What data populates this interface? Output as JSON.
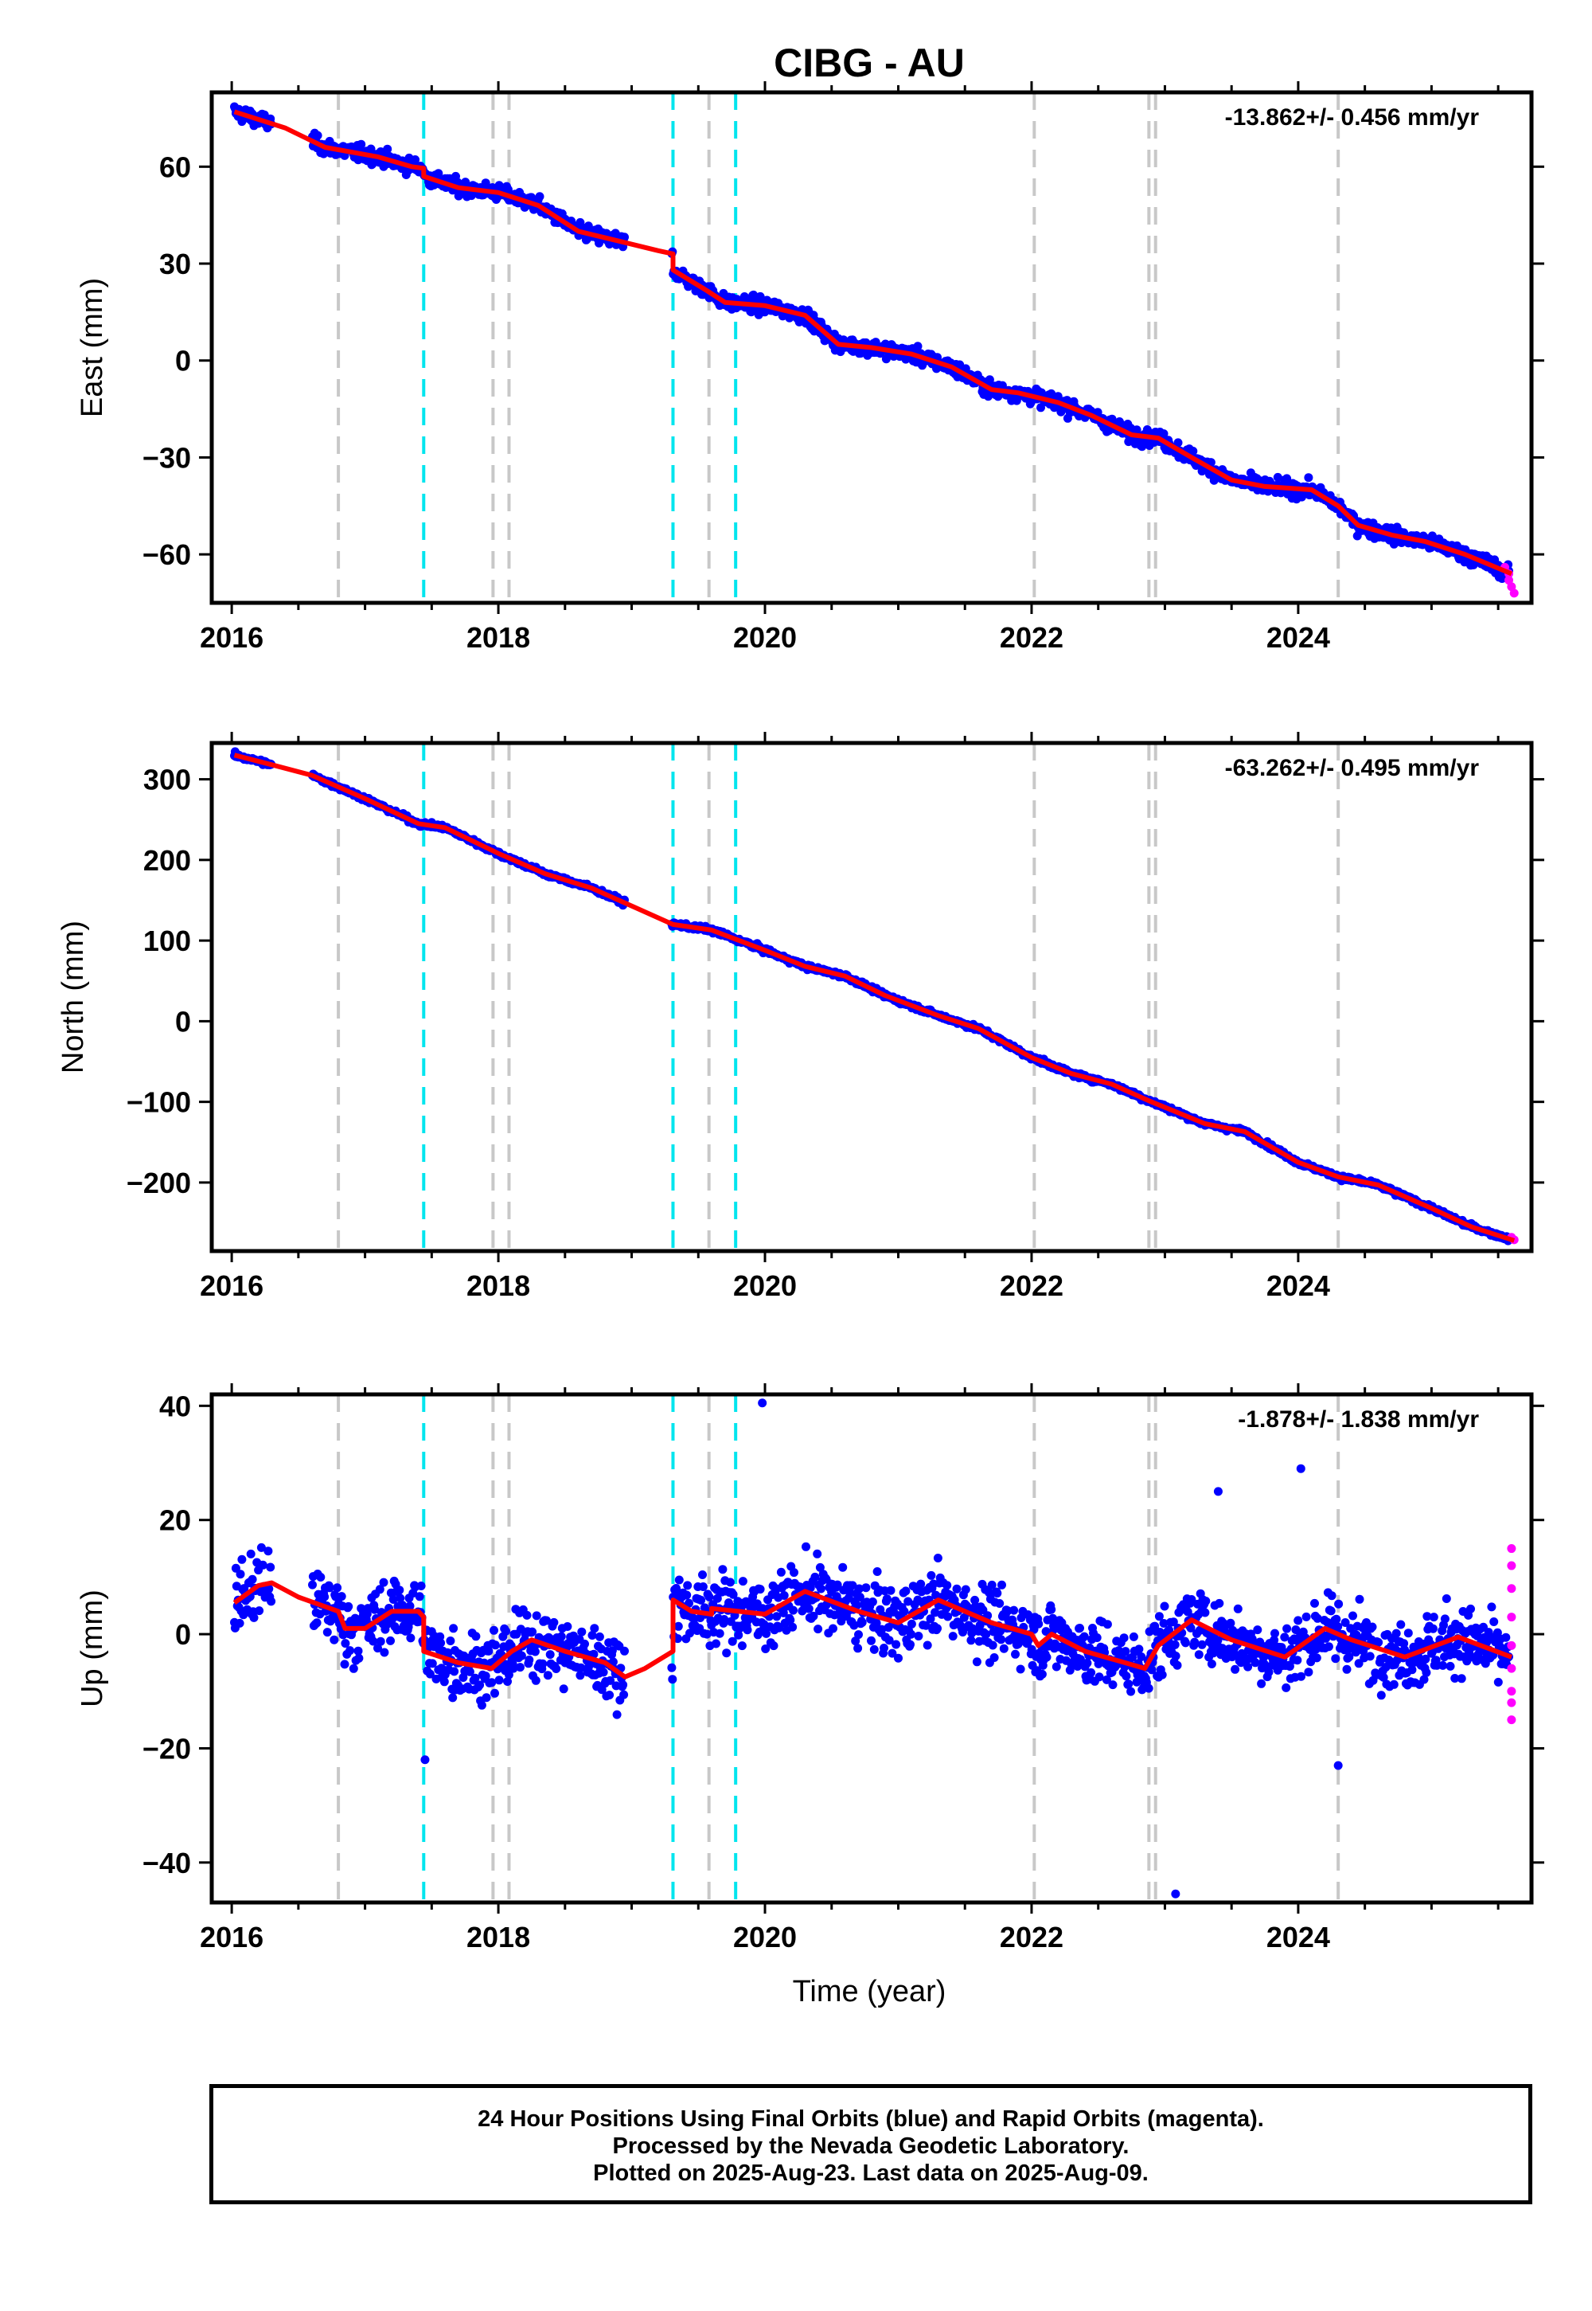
{
  "title": "CIBG - AU",
  "x_label": "Time (year)",
  "footer": {
    "line1": "24 Hour Positions Using Final Orbits (blue) and Rapid Orbits (magenta).",
    "line2": "Processed by the Nevada Geodetic Laboratory.",
    "line3": "Plotted on 2025-Aug-23. Last data on 2025-Aug-09."
  },
  "colors": {
    "final": "#0000ff",
    "rapid": "#ff00ff",
    "model": "#ff0000",
    "equipment_change": "#00e5ee",
    "earthquake": "#c8c8c8"
  },
  "chart_data": [
    {
      "type": "scatter",
      "ylabel": "East (mm)",
      "rate_text": "-13.862+/- 0.456 mm/yr",
      "xlim": [
        2015.85,
        2025.75
      ],
      "ylim": [
        -75,
        83
      ],
      "xticks": [
        2016,
        2018,
        2020,
        2022,
        2024
      ],
      "yticks": [
        60,
        30,
        0,
        -30,
        -60
      ],
      "ytick_labels": [
        "60",
        "30",
        "0",
        "−30",
        "−60"
      ],
      "noise": 2.0,
      "model": [
        [
          2016.02,
          77
        ],
        [
          2016.4,
          72
        ],
        [
          2016.7,
          66
        ],
        [
          2017.1,
          63
        ],
        [
          2017.35,
          60
        ],
        [
          2017.44,
          59.5
        ],
        [
          2017.44,
          57
        ],
        [
          2017.7,
          53.5
        ],
        [
          2018.0,
          52
        ],
        [
          2018.3,
          48
        ],
        [
          2018.6,
          40
        ],
        [
          2018.9,
          37
        ],
        [
          2019.2,
          34
        ],
        [
          2019.31,
          33
        ],
        [
          2019.31,
          28
        ],
        [
          2019.55,
          22
        ],
        [
          2019.7,
          18
        ],
        [
          2020.0,
          17
        ],
        [
          2020.3,
          14
        ],
        [
          2020.55,
          5
        ],
        [
          2020.8,
          4
        ],
        [
          2021.1,
          2
        ],
        [
          2021.4,
          -2
        ],
        [
          2021.7,
          -9
        ],
        [
          2021.9,
          -10
        ],
        [
          2022.2,
          -13
        ],
        [
          2022.45,
          -17
        ],
        [
          2022.6,
          -20
        ],
        [
          2022.75,
          -23
        ],
        [
          2022.95,
          -24
        ],
        [
          2023.2,
          -30
        ],
        [
          2023.5,
          -37
        ],
        [
          2023.75,
          -39
        ],
        [
          2024.1,
          -40
        ],
        [
          2024.3,
          -45
        ],
        [
          2024.45,
          -51
        ],
        [
          2024.7,
          -54
        ],
        [
          2024.95,
          -56
        ],
        [
          2025.25,
          -60
        ],
        [
          2025.6,
          -66
        ]
      ],
      "gaps": [
        [
          2016.3,
          2016.6
        ],
        [
          2018.95,
          2019.3
        ]
      ],
      "rapid": [
        [
          2025.55,
          -64
        ],
        [
          2025.58,
          -66
        ],
        [
          2025.58,
          -68
        ],
        [
          2025.6,
          -70
        ],
        [
          2025.62,
          -72
        ]
      ]
    },
    {
      "type": "scatter",
      "ylabel": "North (mm)",
      "rate_text": "-63.262+/- 0.495 mm/yr",
      "xlim": [
        2015.85,
        2025.75
      ],
      "ylim": [
        -285,
        345
      ],
      "xticks": [
        2016,
        2018,
        2020,
        2022,
        2024
      ],
      "yticks": [
        300,
        200,
        100,
        0,
        -100,
        -200
      ],
      "ytick_labels": [
        "300",
        "200",
        "100",
        "0",
        "−100",
        "−200"
      ],
      "noise": 2.5,
      "model": [
        [
          2016.02,
          330
        ],
        [
          2016.3,
          318
        ],
        [
          2016.6,
          305
        ],
        [
          2017.0,
          276
        ],
        [
          2017.4,
          245
        ],
        [
          2017.6,
          240
        ],
        [
          2018.0,
          208
        ],
        [
          2018.35,
          183
        ],
        [
          2018.7,
          165
        ],
        [
          2019.0,
          143
        ],
        [
          2019.31,
          120
        ],
        [
          2019.6,
          113
        ],
        [
          2020.0,
          88
        ],
        [
          2020.3,
          68
        ],
        [
          2020.6,
          56
        ],
        [
          2020.9,
          32
        ],
        [
          2021.3,
          7
        ],
        [
          2021.6,
          -9
        ],
        [
          2022.0,
          -45
        ],
        [
          2022.3,
          -65
        ],
        [
          2022.6,
          -78
        ],
        [
          2022.9,
          -100
        ],
        [
          2023.3,
          -127
        ],
        [
          2023.6,
          -137
        ],
        [
          2024.0,
          -175
        ],
        [
          2024.3,
          -193
        ],
        [
          2024.6,
          -203
        ],
        [
          2025.0,
          -232
        ],
        [
          2025.3,
          -255
        ],
        [
          2025.62,
          -272
        ]
      ],
      "gaps": [
        [
          2016.3,
          2016.6
        ],
        [
          2018.95,
          2019.3
        ]
      ],
      "rapid": [
        [
          2025.6,
          -268
        ],
        [
          2025.62,
          -271
        ]
      ]
    },
    {
      "type": "scatter",
      "ylabel": "Up (mm)",
      "rate_text": "-1.878+/- 1.838 mm/yr",
      "xlim": [
        2015.85,
        2025.75
      ],
      "ylim": [
        -47,
        42
      ],
      "xticks": [
        2016,
        2018,
        2020,
        2022,
        2024
      ],
      "yticks": [
        40,
        20,
        0,
        -20,
        -40
      ],
      "ytick_labels": [
        "40",
        "20",
        "0",
        "−20",
        "−40"
      ],
      "noise": 5.0,
      "model": [
        [
          2016.02,
          5.5
        ],
        [
          2016.2,
          8.5
        ],
        [
          2016.3,
          9
        ],
        [
          2016.5,
          6.5
        ],
        [
          2016.8,
          4
        ],
        [
          2016.85,
          1
        ],
        [
          2017.0,
          1
        ],
        [
          2017.2,
          4
        ],
        [
          2017.4,
          4
        ],
        [
          2017.44,
          3
        ],
        [
          2017.44,
          -3
        ],
        [
          2017.7,
          -5
        ],
        [
          2017.95,
          -6
        ],
        [
          2018.0,
          -5
        ],
        [
          2018.1,
          -3
        ],
        [
          2018.25,
          -1
        ],
        [
          2018.5,
          -3
        ],
        [
          2018.8,
          -5
        ],
        [
          2018.95,
          -7.5
        ],
        [
          2019.1,
          -6
        ],
        [
          2019.31,
          -3
        ],
        [
          2019.31,
          6
        ],
        [
          2019.45,
          4
        ],
        [
          2019.6,
          3.5
        ],
        [
          2019.6,
          4.5
        ],
        [
          2019.8,
          4
        ],
        [
          2020.0,
          3.5
        ],
        [
          2020.3,
          7.5
        ],
        [
          2020.7,
          4
        ],
        [
          2021.0,
          2
        ],
        [
          2021.3,
          6
        ],
        [
          2021.7,
          2
        ],
        [
          2022.0,
          0
        ],
        [
          2022.05,
          -2
        ],
        [
          2022.15,
          0
        ],
        [
          2022.4,
          -3
        ],
        [
          2022.7,
          -5
        ],
        [
          2022.85,
          -6
        ],
        [
          2022.95,
          -2
        ],
        [
          2023.2,
          2.5
        ],
        [
          2023.5,
          -1
        ],
        [
          2023.9,
          -4
        ],
        [
          2024.2,
          1
        ],
        [
          2024.4,
          -1
        ],
        [
          2024.8,
          -4
        ],
        [
          2025.2,
          -0.5
        ],
        [
          2025.6,
          -4
        ]
      ],
      "gaps": [
        [
          2016.3,
          2016.6
        ],
        [
          2018.95,
          2019.3
        ]
      ],
      "rapid": [
        [
          2025.6,
          15
        ],
        [
          2025.6,
          12
        ],
        [
          2025.6,
          8
        ],
        [
          2025.6,
          3
        ],
        [
          2025.6,
          -2
        ],
        [
          2025.6,
          -6
        ],
        [
          2025.6,
          -10
        ],
        [
          2025.6,
          -12
        ],
        [
          2025.6,
          -15
        ]
      ],
      "outliers": [
        [
          2019.98,
          40.5
        ],
        [
          2023.08,
          -45.5
        ],
        [
          2024.02,
          29
        ],
        [
          2023.4,
          25
        ],
        [
          2017.45,
          -22
        ],
        [
          2024.3,
          -23
        ]
      ]
    }
  ],
  "event_lines": {
    "equipment_change": [
      2017.44,
      2019.31,
      2019.78
    ],
    "earthquake": [
      2016.8,
      2017.96,
      2018.08,
      2019.58,
      2022.02,
      2022.88,
      2022.93,
      2024.3
    ]
  }
}
